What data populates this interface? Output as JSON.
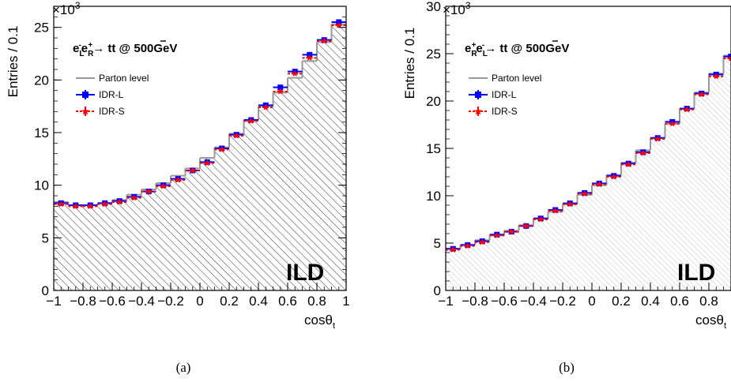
{
  "chart_data": [
    {
      "type": "line",
      "panel_caption": "(a)",
      "process_label": {
        "lead": "e",
        "s1": "L",
        "p1": "-",
        "mid": "e",
        "s2": "R",
        "p2": "+",
        "arrow": "→ tt",
        "tail": " @ 500GeV"
      },
      "xlabel_main": "cos",
      "xlabel_theta": "θ",
      "xlabel_sub": "t",
      "ylabel": "Entries / 0.1",
      "y_multiplier_base": "×10",
      "y_multiplier_exp": "3",
      "watermark": "ILD",
      "xlim": [
        -1,
        1
      ],
      "ylim": [
        0,
        27
      ],
      "x_ticks": [
        -1,
        -0.8,
        -0.6,
        -0.4,
        -0.2,
        0,
        0.2,
        0.4,
        0.6,
        0.8,
        1
      ],
      "x_tick_labels": [
        "−1",
        "−0.8",
        "−0.6",
        "−0.4",
        "−0.2",
        "0",
        "0.2",
        "0.4",
        "0.6",
        "0.8",
        "1"
      ],
      "y_ticks": [
        0,
        5,
        10,
        15,
        20,
        25
      ],
      "y_tick_labels": [
        "0",
        "5",
        "10",
        "15",
        "20",
        "25"
      ],
      "bin_edges": [
        -1.0,
        -0.9,
        -0.8,
        -0.7,
        -0.6,
        -0.5,
        -0.4,
        -0.3,
        -0.2,
        -0.1,
        0.0,
        0.1,
        0.2,
        0.3,
        0.4,
        0.5,
        0.6,
        0.7,
        0.8,
        0.9,
        1.0
      ],
      "x": [
        -0.95,
        -0.85,
        -0.75,
        -0.65,
        -0.55,
        -0.45,
        -0.35,
        -0.25,
        -0.15,
        -0.05,
        0.05,
        0.15,
        0.25,
        0.35,
        0.45,
        0.55,
        0.65,
        0.75,
        0.85,
        0.95
      ],
      "legend": [
        "Parton level",
        "IDR-L",
        "IDR-S"
      ],
      "series": [
        {
          "name": "Parton level",
          "style": "histogram",
          "color": "#9a9a9a",
          "values": [
            8.4,
            8.1,
            8.1,
            8.3,
            8.6,
            9.1,
            9.6,
            10.2,
            10.9,
            11.6,
            12.6,
            13.6,
            14.9,
            16.2,
            17.5,
            18.8,
            20.2,
            21.8,
            23.6,
            25.3
          ]
        },
        {
          "name": "IDR-L",
          "style": "markers",
          "color": "#0000ff",
          "values": [
            8.3,
            8.1,
            8.1,
            8.3,
            8.5,
            8.9,
            9.4,
            10.0,
            10.6,
            11.4,
            12.2,
            13.5,
            14.8,
            16.2,
            17.6,
            19.3,
            20.8,
            22.4,
            23.8,
            25.5
          ]
        },
        {
          "name": "IDR-S",
          "style": "markers",
          "color": "#ff0000",
          "values": [
            8.2,
            8.0,
            8.0,
            8.2,
            8.4,
            8.8,
            9.4,
            9.9,
            10.5,
            11.4,
            12.1,
            13.4,
            14.7,
            16.1,
            17.4,
            18.9,
            20.6,
            22.1,
            23.7,
            25.2
          ]
        }
      ]
    },
    {
      "type": "line",
      "panel_caption": "(b)",
      "process_label": {
        "lead": "e",
        "s1": "R",
        "p1": "+",
        "mid": "e",
        "s2": "L",
        "p2": "-",
        "arrow": "→ tt",
        "tail": " @ 500GeV"
      },
      "xlabel_main": "cos",
      "xlabel_theta": "θ",
      "xlabel_sub": "t",
      "ylabel": "Entries / 0.1",
      "y_multiplier_base": "×10",
      "y_multiplier_exp": "3",
      "watermark": "ILD",
      "xlim": [
        -1,
        1
      ],
      "ylim": [
        0,
        30
      ],
      "x_ticks": [
        -1,
        -0.8,
        -0.6,
        -0.4,
        -0.2,
        0,
        0.2,
        0.4,
        0.6,
        0.8
      ],
      "x_tick_labels": [
        "−1",
        "−0.8",
        "−0.6",
        "−0.4",
        "−0.2",
        "0",
        "0.2",
        "0.4",
        "0.6",
        "0.8"
      ],
      "y_ticks": [
        0,
        5,
        10,
        15,
        20,
        25,
        30
      ],
      "y_tick_labels": [
        "0",
        "5",
        "10",
        "15",
        "20",
        "25",
        "30"
      ],
      "bin_edges": [
        -1.0,
        -0.9,
        -0.8,
        -0.7,
        -0.6,
        -0.5,
        -0.4,
        -0.3,
        -0.2,
        -0.1,
        0.0,
        0.1,
        0.2,
        0.3,
        0.4,
        0.5,
        0.6,
        0.7,
        0.8,
        0.9,
        1.0
      ],
      "x": [
        -0.95,
        -0.85,
        -0.75,
        -0.65,
        -0.55,
        -0.45,
        -0.35,
        -0.25,
        -0.15,
        -0.05,
        0.05,
        0.15,
        0.25,
        0.35,
        0.45,
        0.55,
        0.65,
        0.75,
        0.85,
        0.95
      ],
      "legend": [
        "Parton level",
        "IDR-L",
        "IDR-S"
      ],
      "series": [
        {
          "name": "Parton level",
          "style": "histogram",
          "color": "#9a9a9a",
          "values": [
            4.4,
            4.8,
            5.3,
            5.8,
            6.3,
            6.9,
            7.6,
            8.3,
            9.1,
            10.1,
            11.1,
            12.2,
            13.5,
            14.8,
            16.1,
            17.6,
            19.2,
            20.9,
            22.9,
            24.8
          ]
        },
        {
          "name": "IDR-L",
          "style": "markers",
          "color": "#0000ff",
          "values": [
            4.4,
            4.8,
            5.2,
            5.9,
            6.2,
            6.8,
            7.6,
            8.5,
            9.2,
            10.3,
            11.3,
            12.1,
            13.4,
            14.6,
            16.1,
            17.8,
            19.2,
            20.8,
            22.8,
            24.7
          ]
        },
        {
          "name": "IDR-S",
          "style": "markers",
          "color": "#ff0000",
          "values": [
            4.3,
            4.7,
            5.1,
            5.8,
            6.2,
            6.8,
            7.5,
            8.4,
            9.1,
            10.2,
            11.2,
            12.0,
            13.3,
            14.5,
            16.0,
            17.6,
            19.1,
            20.7,
            22.6,
            24.5
          ]
        }
      ]
    }
  ]
}
